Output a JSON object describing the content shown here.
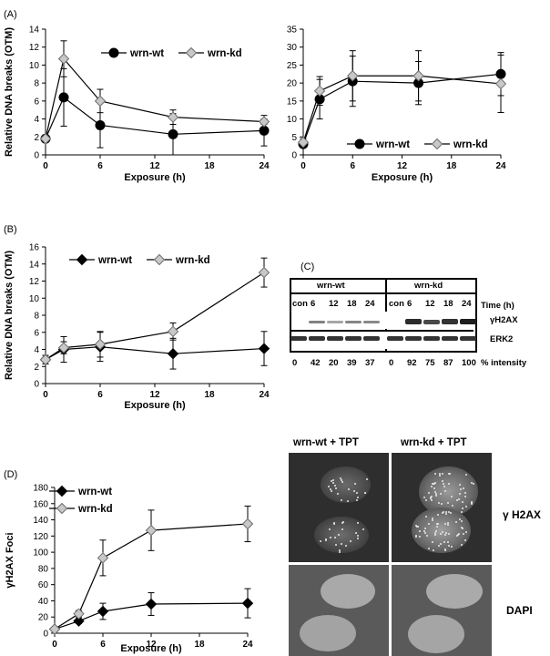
{
  "panel_labels": {
    "a": "(A)",
    "b": "(B)",
    "c": "(C)",
    "d": "(D)"
  },
  "colors": {
    "wt": "#000000",
    "kd": "#c8c8c8",
    "kd_edge": "#6e6e6e",
    "line": "#000000"
  },
  "chart_data": [
    {
      "id": "A-left",
      "type": "line",
      "xlabel": "Exposure (h)",
      "ylabel": "Relative DNA breaks (OTM)",
      "xlim": [
        0,
        24
      ],
      "ylim": [
        0,
        14
      ],
      "xticks": [
        0,
        6,
        12,
        18,
        24
      ],
      "yticks": [
        0,
        2,
        4,
        6,
        8,
        10,
        12,
        14
      ],
      "legend_position": "top",
      "series": [
        {
          "name": "wrn-wt",
          "marker": "circle",
          "x": [
            0,
            2,
            6,
            14,
            24
          ],
          "y": [
            1.8,
            6.4,
            3.3,
            2.3,
            2.7
          ],
          "err": [
            0.3,
            3.2,
            2.5,
            2.3,
            1.7
          ]
        },
        {
          "name": "wrn-kd",
          "marker": "diamond",
          "x": [
            0,
            2,
            6,
            14,
            24
          ],
          "y": [
            1.8,
            10.7,
            6.0,
            4.2,
            3.7
          ],
          "err": [
            0.3,
            2.0,
            1.3,
            0.8,
            0.3
          ]
        }
      ]
    },
    {
      "id": "A-right",
      "type": "line",
      "xlabel": "Exposure (h)",
      "ylabel": "",
      "xlim": [
        0,
        24
      ],
      "ylim": [
        0,
        35
      ],
      "xticks": [
        0,
        6,
        12,
        18,
        24
      ],
      "yticks": [
        0,
        5,
        10,
        15,
        20,
        25,
        30,
        35
      ],
      "legend_position": "bottom",
      "series": [
        {
          "name": "wrn-wt",
          "marker": "circle",
          "x": [
            0,
            2,
            6,
            14,
            24
          ],
          "y": [
            3.0,
            15.5,
            20.5,
            20.0,
            22.5
          ],
          "err": [
            0.8,
            5.5,
            7.0,
            6.0,
            6.0
          ]
        },
        {
          "name": "wrn-kd",
          "marker": "diamond",
          "x": [
            0,
            2,
            6,
            14,
            24
          ],
          "y": [
            3.5,
            17.8,
            22.0,
            22.0,
            19.8
          ],
          "err": [
            1.0,
            4.0,
            7.0,
            7.0,
            8.0
          ]
        }
      ]
    },
    {
      "id": "B",
      "type": "line",
      "xlabel": "Exposure (h)",
      "ylabel": "Relative DNA breaks (OTM)",
      "xlim": [
        0,
        24
      ],
      "ylim": [
        0,
        16
      ],
      "xticks": [
        0,
        6,
        12,
        18,
        24
      ],
      "yticks": [
        0,
        2,
        4,
        6,
        8,
        10,
        12,
        14,
        16
      ],
      "legend_position": "top",
      "series": [
        {
          "name": "wrn-wt",
          "marker": "diamond",
          "x": [
            0,
            2,
            6,
            14,
            24
          ],
          "y": [
            2.8,
            4.0,
            4.3,
            3.5,
            4.1
          ],
          "err": [
            0.5,
            1.5,
            1.7,
            1.8,
            2.0
          ]
        },
        {
          "name": "wrn-kd",
          "marker": "diamond",
          "x": [
            0,
            2,
            6,
            14,
            24
          ],
          "y": [
            2.8,
            4.2,
            4.6,
            6.1,
            13.0
          ],
          "err": [
            0.5,
            0.7,
            1.5,
            1.0,
            1.7
          ]
        }
      ]
    },
    {
      "id": "D",
      "type": "line",
      "xlabel": "Exposure (h)",
      "ylabel": "γH2AX Foci",
      "xlim": [
        0,
        24
      ],
      "ylim": [
        0,
        180
      ],
      "xticks": [
        0,
        6,
        12,
        18,
        24
      ],
      "yticks": [
        0,
        20,
        40,
        60,
        80,
        100,
        120,
        140,
        160,
        180
      ],
      "legend_position": "top",
      "series": [
        {
          "name": "wrn-wt",
          "marker": "diamond",
          "x": [
            0,
            3,
            6,
            12,
            24
          ],
          "y": [
            5,
            15,
            27,
            36,
            37
          ],
          "err": [
            2,
            3,
            10,
            14,
            18
          ]
        },
        {
          "name": "wrn-kd",
          "marker": "diamond",
          "x": [
            0,
            3,
            6,
            12,
            24
          ],
          "y": [
            5,
            24,
            93,
            127,
            135
          ],
          "err": [
            2,
            4,
            22,
            25,
            22
          ]
        }
      ]
    }
  ],
  "blot": {
    "group_wt": "wrn-wt",
    "group_kd": "wrn-kd",
    "lanes": [
      "con",
      "6",
      "12",
      "18",
      "24",
      "con",
      "6",
      "12",
      "18",
      "24"
    ],
    "time_label": "Time (h)",
    "row1_label": "γH2AX",
    "row2_label": "ERK2",
    "intensities": [
      "0",
      "42",
      "20",
      "39",
      "37",
      "0",
      "92",
      "75",
      "87",
      "100"
    ],
    "intensity_label": "% intensity",
    "band_levels": [
      0,
      0.42,
      0.2,
      0.39,
      0.37,
      0,
      0.92,
      0.75,
      0.87,
      1.0
    ]
  },
  "micrographs": {
    "col1": "wrn-wt + TPT",
    "col2": "wrn-kd + TPT",
    "row1": "γ H2AX",
    "row2": "DAPI"
  }
}
